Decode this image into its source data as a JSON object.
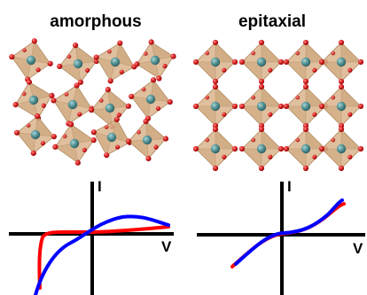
{
  "panels": {
    "left": {
      "title": "amorphous",
      "x_label": "V",
      "y_label": "I"
    },
    "right": {
      "title": "epitaxial",
      "x_label": "V",
      "y_label": "I"
    }
  },
  "colors": {
    "octahedron_fill": "#d9b48c",
    "octahedron_edge": "#b08a60",
    "octahedron_face_dark": "#c49a6c",
    "central_atom": "#4f8f92",
    "oxygen_atom": "#d41b1b",
    "curve_red": "#ff0000",
    "curve_blue": "#0000ff",
    "axis": "#000000"
  }
}
